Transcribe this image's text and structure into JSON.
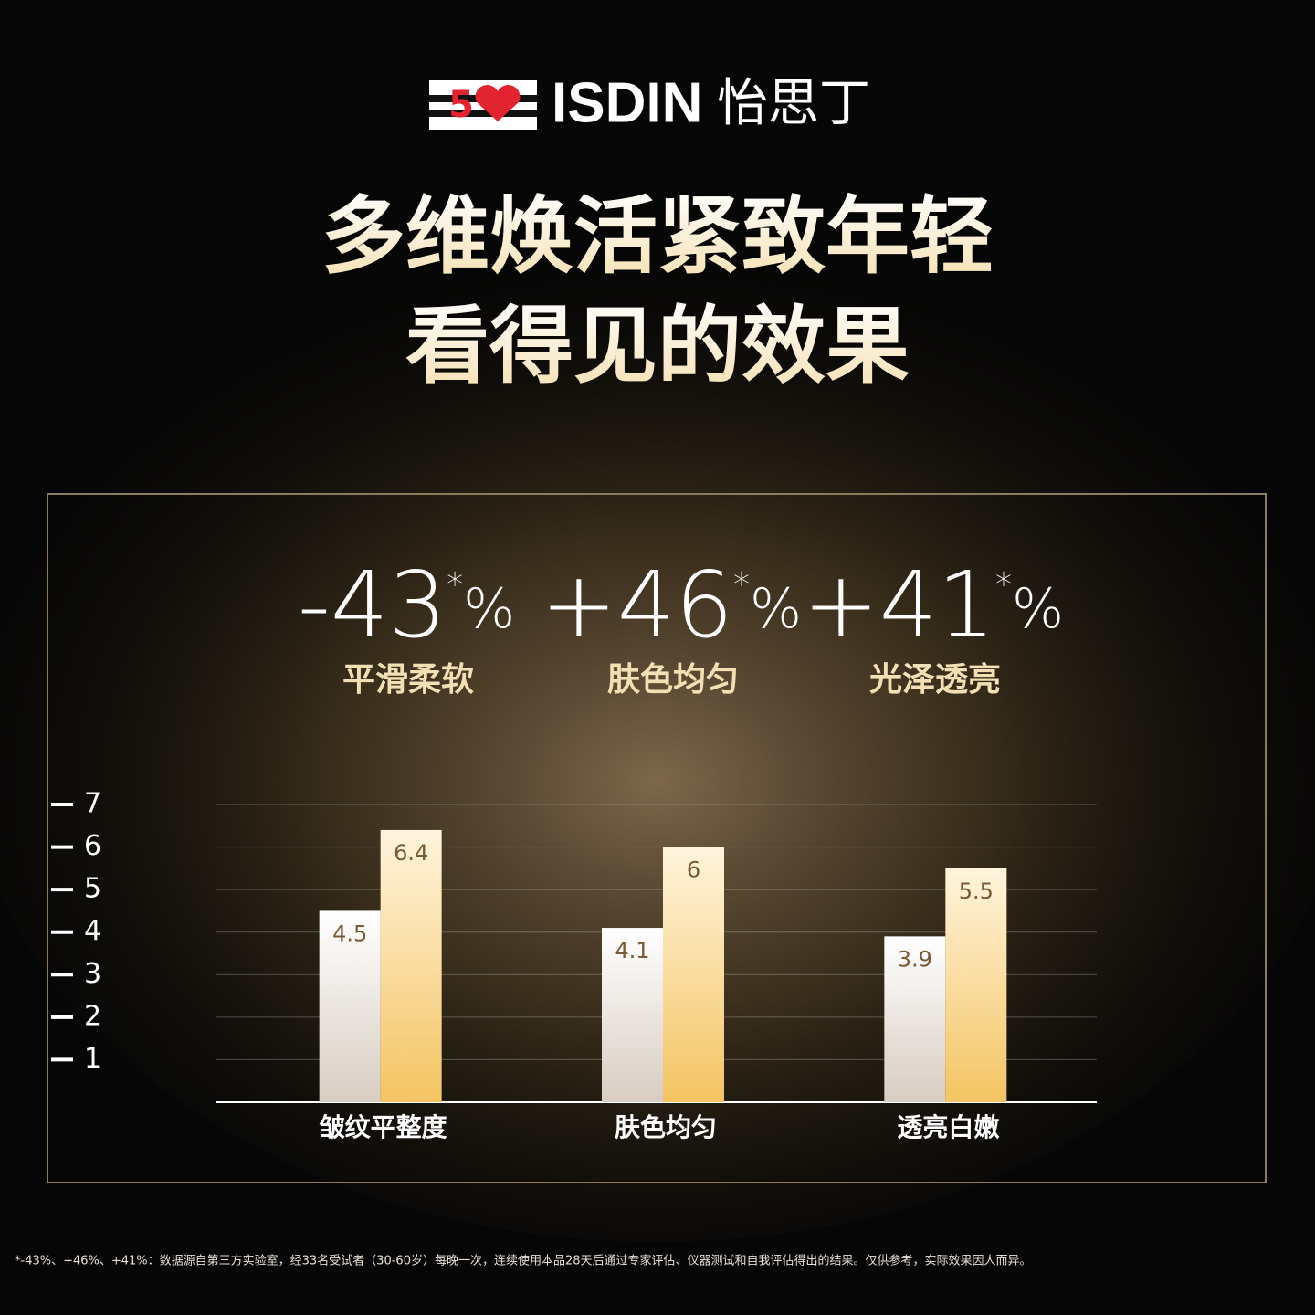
{
  "header": {
    "logo_badge": "5",
    "brand": "ISDIN",
    "brand_cn": "怡思丁"
  },
  "title_lines": [
    "多维焕活紧致年轻",
    "看得见的效果"
  ],
  "stats": [
    {
      "value": "-43",
      "mark": "*",
      "unit": "%",
      "label": "平滑柔软"
    },
    {
      "value": "+46",
      "mark": "*",
      "unit": "%",
      "label": "肤色均匀"
    },
    {
      "value": "+41",
      "mark": "*",
      "unit": "%",
      "label": "光泽透亮"
    }
  ],
  "chart_data": {
    "type": "bar",
    "categories": [
      "皱纹平整度",
      "肤色均匀",
      "透亮白嫩"
    ],
    "series": [
      {
        "color": "#efe9e3",
        "values": [
          4.5,
          4.1,
          3.9
        ]
      },
      {
        "color": "#f6d48a",
        "values": [
          6.4,
          6,
          5.5
        ]
      }
    ],
    "ylim": [
      0,
      7
    ],
    "yticks": [
      1,
      2,
      3,
      4,
      5,
      6,
      7
    ],
    "grid": true
  },
  "footnote": "*-43%、+46%、+41%：数据源自第三方实验室，经33名受试者（30-60岁）每晚一次，连续使用本品28天后通过专家评估、仪器测试和自我评估得出的结果。仅供参考，实际效果因人而异。"
}
